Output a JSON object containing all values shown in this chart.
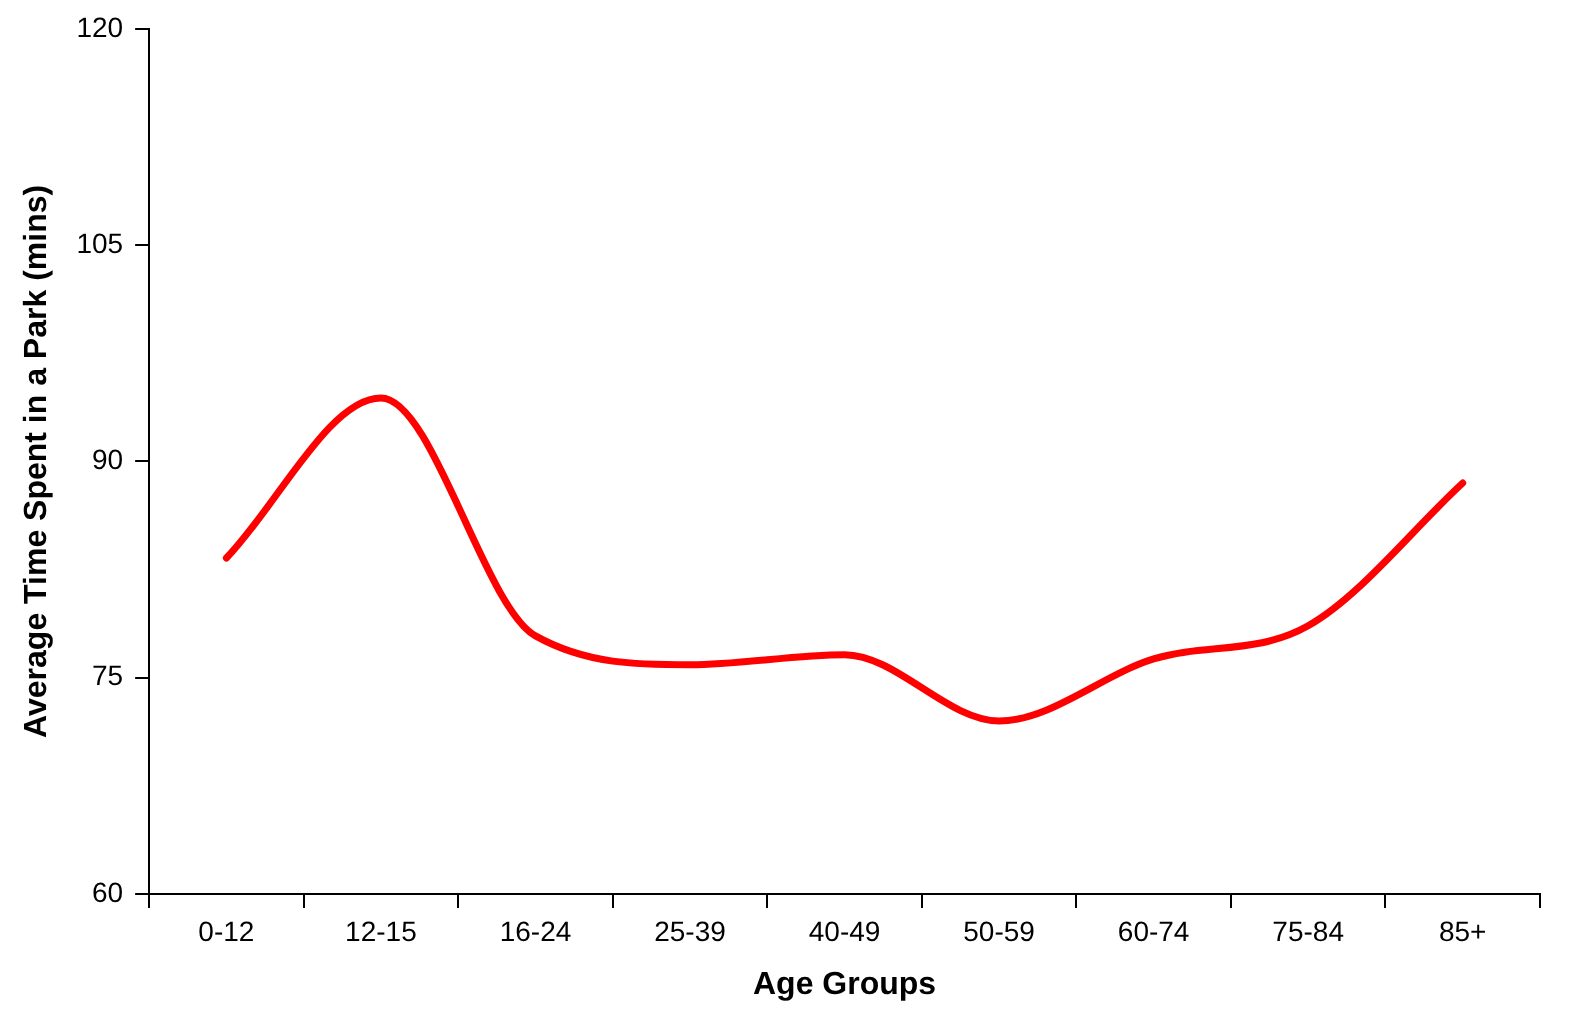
{
  "chart_data": {
    "type": "line",
    "xlabel": "Age Groups",
    "ylabel": "Average Time Spent in a Park (mins)",
    "categories": [
      "0-12",
      "12-15",
      "16-24",
      "25-39",
      "40-49",
      "50-59",
      "60-74",
      "75-84",
      "85+"
    ],
    "series": [
      {
        "color": "#ff0000",
        "values": [
          83.3,
          94.4,
          77.9,
          75.9,
          76.6,
          72.0,
          76.3,
          78.6,
          88.5
        ]
      }
    ],
    "ylim": [
      60,
      120
    ],
    "yticks": [
      60,
      75,
      90,
      105,
      120
    ],
    "grid": false,
    "legend": false,
    "marker": "none",
    "line_style": "solid"
  }
}
